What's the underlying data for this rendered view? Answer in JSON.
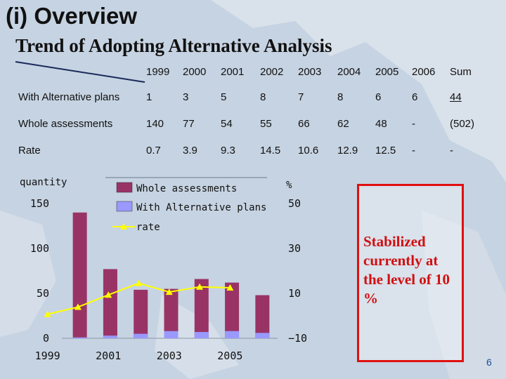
{
  "slide": {
    "title": "(i) Overview",
    "subtitle": "Trend of Adopting Alternative Analysis",
    "note": "Stabilized currently at the level of 10 %",
    "page_number": "6"
  },
  "table": {
    "header": [
      "1999",
      "2000",
      "2001",
      "2002",
      "2003",
      "2004",
      "2005",
      "2006",
      "Sum"
    ],
    "rows": [
      {
        "label": "With Alternative plans",
        "values": [
          "1",
          "3",
          "5",
          "8",
          "7",
          "8",
          "6",
          "6",
          "44"
        ]
      },
      {
        "label": "Whole assessments",
        "values": [
          "140",
          "77",
          "54",
          "55",
          "66",
          "62",
          "48",
          "-",
          "(502)"
        ]
      },
      {
        "label": "Rate",
        "values": [
          "0.7",
          "3.9",
          "9.3",
          "14.5",
          "10.6",
          "12.9",
          "12.5",
          "-",
          "-"
        ]
      }
    ]
  },
  "colors": {
    "whole": "#993366",
    "alternative": "#9999ff",
    "rate": "#ffff00",
    "note_border": "#e01010"
  },
  "chart_data": {
    "type": "bar",
    "categories": [
      "1999",
      "2000",
      "2001",
      "2002",
      "2003",
      "2004",
      "2005"
    ],
    "x_tick_labels": [
      "1999",
      "2001",
      "2003",
      "2005"
    ],
    "series": [
      {
        "name": "Whole assessments",
        "type": "bar",
        "axis": "left",
        "values": [
          140,
          77,
          54,
          55,
          66,
          62,
          48
        ]
      },
      {
        "name": "With Alternative plans",
        "type": "bar",
        "axis": "left",
        "values": [
          1,
          3,
          5,
          8,
          7,
          8,
          6
        ]
      },
      {
        "name": "rate",
        "type": "line",
        "axis": "right",
        "values": [
          0.7,
          3.9,
          9.3,
          14.5,
          10.6,
          12.9,
          12.5
        ]
      }
    ],
    "ylabel": "quantity",
    "y2label": "%",
    "ylim": [
      0,
      150
    ],
    "y_ticks": [
      "0",
      "50",
      "100",
      "150"
    ],
    "y2lim": [
      -10,
      50
    ],
    "y2_ticks": [
      "−10",
      "10",
      "30",
      "50"
    ],
    "legend_position": "top"
  }
}
